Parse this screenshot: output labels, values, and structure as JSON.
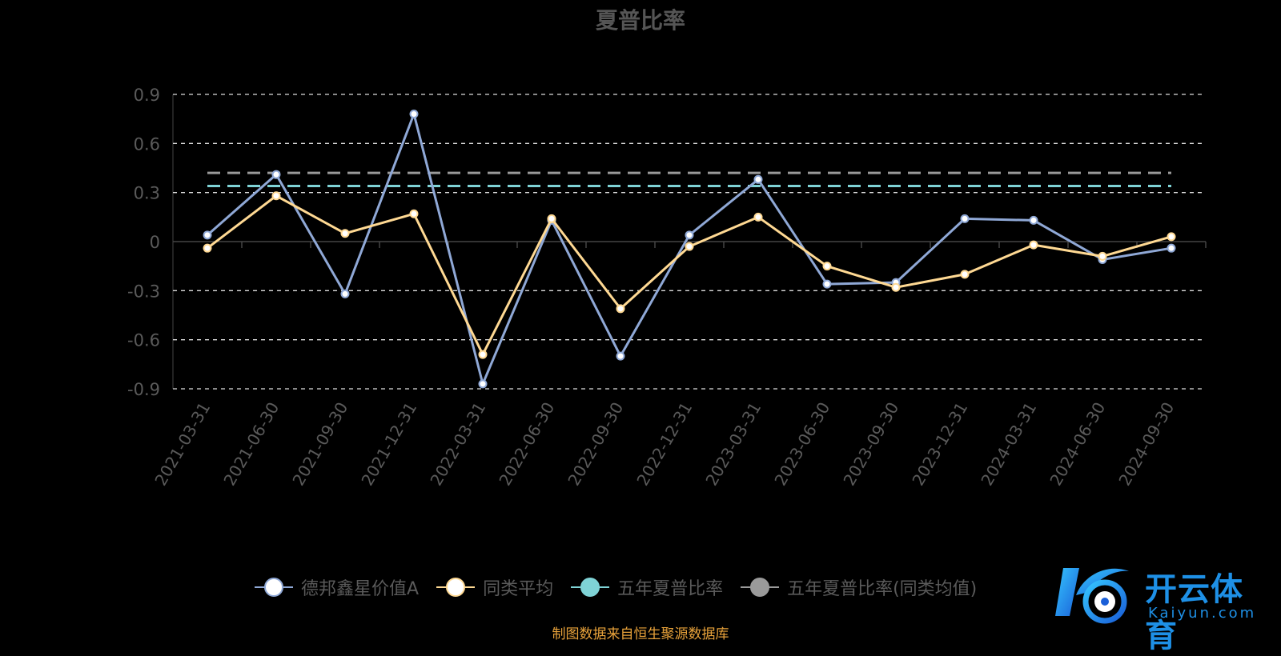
{
  "title": "夏普比率",
  "source_note": "制图数据来自恒生聚源数据库",
  "logo": {
    "cn": "开云体育",
    "en": "Kaiyun.com"
  },
  "legend": [
    {
      "label": "德邦鑫星价值A",
      "color": "#8fa8d6"
    },
    {
      "label": "同类平均",
      "color": "#ffd993"
    },
    {
      "label": "五年夏普比率",
      "color": "#7fd3d6"
    },
    {
      "label": "五年夏普比率(同类均值)",
      "color": "#9a9a9a"
    }
  ],
  "chart_data": {
    "type": "line",
    "title": "夏普比率",
    "categories": [
      "2021-03-31",
      "2021-06-30",
      "2021-09-30",
      "2021-12-31",
      "2022-03-31",
      "2022-06-30",
      "2022-09-30",
      "2022-12-31",
      "2023-03-31",
      "2023-06-30",
      "2023-09-30",
      "2023-12-31",
      "2024-03-31",
      "2024-06-30",
      "2024-09-30"
    ],
    "ylim": [
      -0.9,
      0.9
    ],
    "yticks": [
      "0.9",
      "0.6",
      "0.3",
      "0",
      "-0.3",
      "-0.6",
      "-0.9"
    ],
    "grid": true,
    "legend_position": "bottom",
    "series": [
      {
        "name": "德邦鑫星价值A",
        "color": "#8fa8d6",
        "values": [
          0.04,
          0.41,
          -0.32,
          0.78,
          -0.87,
          0.13,
          -0.7,
          0.04,
          0.38,
          -0.26,
          -0.25,
          0.14,
          0.13,
          -0.11,
          -0.04
        ]
      },
      {
        "name": "同类平均",
        "color": "#ffd993",
        "values": [
          -0.04,
          0.28,
          0.05,
          0.17,
          -0.69,
          0.14,
          -0.41,
          -0.03,
          0.15,
          -0.15,
          -0.28,
          -0.2,
          -0.02,
          -0.09,
          0.03
        ]
      }
    ],
    "reference_lines": [
      {
        "name": "五年夏普比率",
        "color": "#7fd3d6",
        "value": 0.34
      },
      {
        "name": "五年夏普比率(同类均值)",
        "color": "#9a9a9a",
        "value": 0.42
      }
    ]
  }
}
